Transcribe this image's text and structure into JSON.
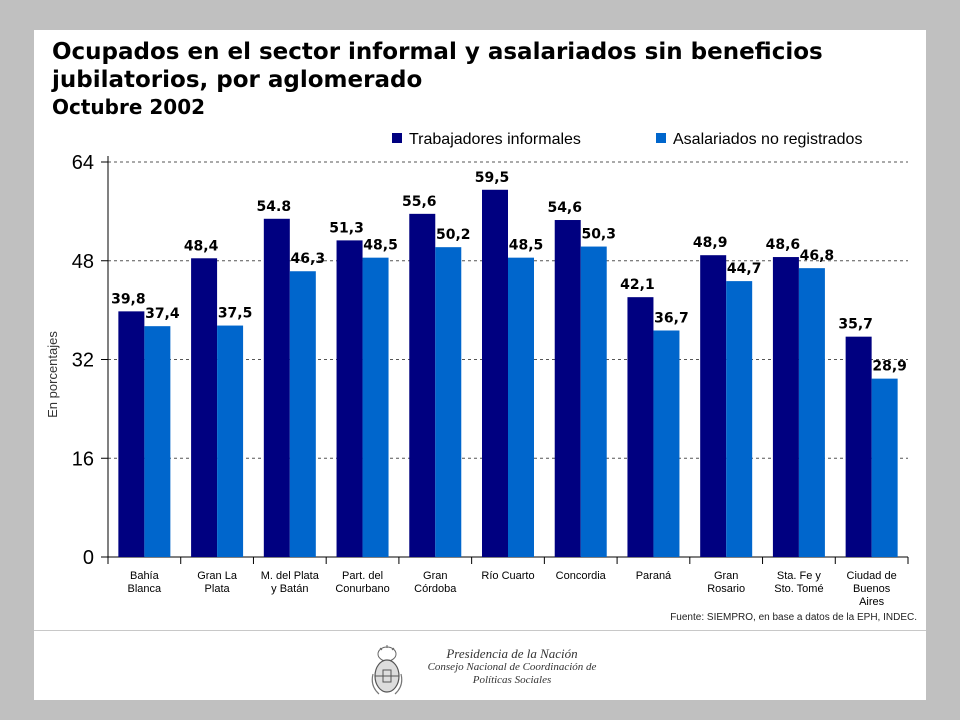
{
  "title": {
    "line1": "Ocupados en el sector informal y asalariados sin beneficios",
    "line2": "jubilatorios, por aglomerado",
    "subtitle": "Octubre 2002"
  },
  "source": "Fuente: SIEMPRO, en base a datos de la EPH, INDEC.",
  "footer": {
    "line1": "Presidencia de la Nación",
    "line2": "Consejo Nacional de Coordinación de",
    "line3": "Políticas Sociales"
  },
  "colors": {
    "series1": "#000080",
    "series2": "#0066cc",
    "grid": "#555555",
    "frame": "#c0c0c0"
  },
  "chart_data": {
    "type": "bar",
    "title": "Ocupados en el sector informal y asalariados sin beneficios jubilatorios, por aglomerado",
    "subtitle": "Octubre 2002",
    "ylabel": "En porcentajes",
    "xlabel": "",
    "ylim": [
      0,
      64
    ],
    "yticks": [
      "0",
      "16",
      "32",
      "48",
      "64"
    ],
    "grid": true,
    "legend": "top",
    "categories": [
      [
        "Bahía",
        "Blanca"
      ],
      [
        "Gran La",
        "Plata"
      ],
      [
        "M. del Plata",
        "y Batán"
      ],
      [
        "Part. del",
        "Conurbano"
      ],
      [
        "Gran",
        "Córdoba"
      ],
      [
        "Río Cuarto"
      ],
      [
        "Concordia"
      ],
      [
        "Paraná"
      ],
      [
        "Gran",
        "Rosario"
      ],
      [
        "Sta. Fe y",
        "Sto. Tomé"
      ],
      [
        "Ciudad de",
        "Buenos",
        "Aires"
      ]
    ],
    "series": [
      {
        "name": "Trabajadores informales",
        "values": [
          39.8,
          48.4,
          54.8,
          51.3,
          55.6,
          59.5,
          54.6,
          42.1,
          48.9,
          48.6,
          35.7
        ],
        "labels": [
          "39,8",
          "48,4",
          "54.8",
          "51,3",
          "55,6",
          "59,5",
          "54,6",
          "42,1",
          "48,9",
          "48,6",
          "35,7"
        ]
      },
      {
        "name": "Asalariados no registrados",
        "values": [
          37.4,
          37.5,
          46.3,
          48.5,
          50.2,
          48.5,
          50.3,
          36.7,
          44.7,
          46.8,
          28.9
        ],
        "labels": [
          "37,4",
          "37,5",
          "46,3",
          "48,5",
          "50,2",
          "48,5",
          "50,3",
          "36,7",
          "44,7",
          "46,8",
          "28,9"
        ]
      }
    ]
  }
}
